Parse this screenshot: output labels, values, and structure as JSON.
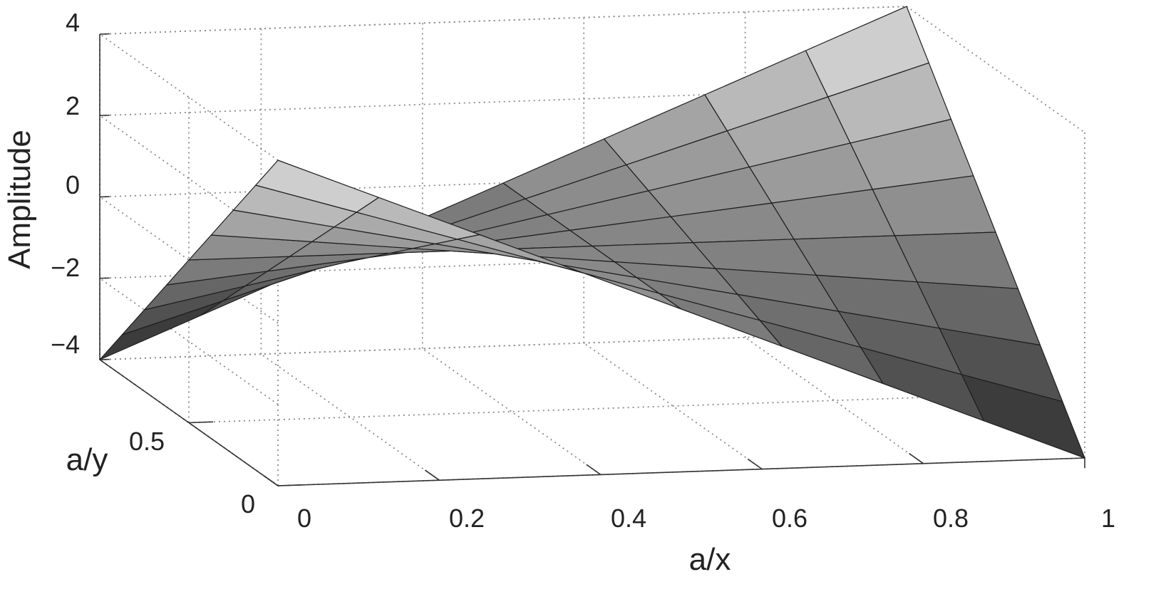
{
  "chart_data": {
    "type": "surface",
    "xlabel": "a/x",
    "ylabel": "a/y",
    "zlabel": "Amplitude",
    "xlim": [
      0,
      1
    ],
    "ylim": [
      0,
      1
    ],
    "zlim": [
      -4,
      4
    ],
    "x_ticks": [
      "0",
      "0.2",
      "0.4",
      "0.6",
      "0.8",
      "1"
    ],
    "y_ticks": [
      "0",
      "0.5"
    ],
    "z_ticks": [
      "4",
      "2",
      "0",
      "−2",
      "−4"
    ],
    "grid": true,
    "colormap": "gray",
    "x": [
      0,
      0.125,
      0.25,
      0.375,
      0.5,
      0.625,
      0.75,
      0.875,
      1
    ],
    "y": [
      0,
      0.125,
      0.25,
      0.375,
      0.5,
      0.625,
      0.75,
      0.875,
      1
    ],
    "z_formula": "4 * (1 - 2*x) * (1 - 2*y)"
  }
}
